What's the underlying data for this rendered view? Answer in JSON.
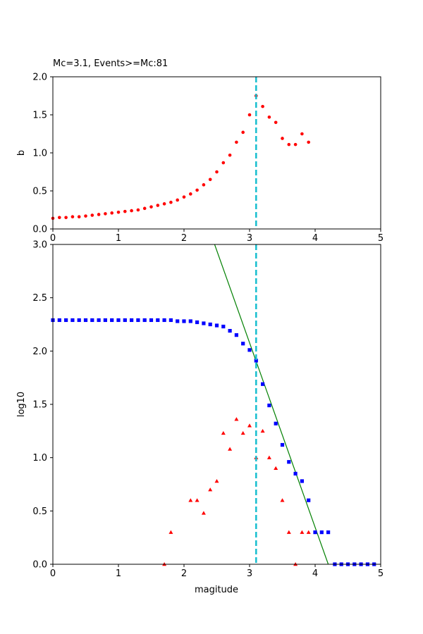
{
  "chart_data": [
    {
      "type": "scatter",
      "title": "Mc=3.1, Events>=Mc:81",
      "xlabel": "",
      "ylabel": "b",
      "xlim": [
        0,
        5
      ],
      "ylim": [
        0,
        2
      ],
      "x_ticks": [
        "0",
        "1",
        "2",
        "3",
        "4",
        "5"
      ],
      "y_ticks": [
        "0.0",
        "0.5",
        "1.0",
        "1.5",
        "2.0"
      ],
      "grid": false,
      "series": [
        {
          "marker": "circle",
          "color": "#ff0000",
          "points": [
            [
              0.0,
              0.14
            ],
            [
              0.1,
              0.15
            ],
            [
              0.2,
              0.15
            ],
            [
              0.3,
              0.16
            ],
            [
              0.4,
              0.16
            ],
            [
              0.5,
              0.17
            ],
            [
              0.6,
              0.18
            ],
            [
              0.7,
              0.19
            ],
            [
              0.8,
              0.2
            ],
            [
              0.9,
              0.21
            ],
            [
              1.0,
              0.22
            ],
            [
              1.1,
              0.23
            ],
            [
              1.2,
              0.24
            ],
            [
              1.3,
              0.25
            ],
            [
              1.4,
              0.27
            ],
            [
              1.5,
              0.29
            ],
            [
              1.6,
              0.31
            ],
            [
              1.7,
              0.33
            ],
            [
              1.8,
              0.35
            ],
            [
              1.9,
              0.38
            ],
            [
              2.0,
              0.42
            ],
            [
              2.1,
              0.46
            ],
            [
              2.2,
              0.51
            ],
            [
              2.3,
              0.58
            ],
            [
              2.4,
              0.65
            ],
            [
              2.5,
              0.75
            ],
            [
              2.6,
              0.87
            ],
            [
              2.7,
              0.97
            ],
            [
              2.8,
              1.14
            ],
            [
              2.9,
              1.27
            ],
            [
              3.0,
              1.5
            ],
            [
              3.1,
              1.75
            ],
            [
              3.2,
              1.61
            ],
            [
              3.3,
              1.47
            ],
            [
              3.4,
              1.4
            ],
            [
              3.5,
              1.19
            ],
            [
              3.6,
              1.11
            ],
            [
              3.7,
              1.11
            ],
            [
              3.8,
              1.25
            ],
            [
              3.9,
              1.14
            ]
          ]
        }
      ],
      "mc_line": {
        "x": 3.1,
        "color": "#17becf",
        "style": "dashed"
      }
    },
    {
      "type": "scatter",
      "title": "",
      "xlabel": "magitude",
      "ylabel": "log10",
      "xlim": [
        0,
        5
      ],
      "ylim": [
        0,
        3
      ],
      "x_ticks": [
        "0",
        "1",
        "2",
        "3",
        "4",
        "5"
      ],
      "y_ticks": [
        "0.0",
        "0.5",
        "1.0",
        "1.5",
        "2.0",
        "2.5",
        "3.0"
      ],
      "grid": false,
      "series": [
        {
          "marker": "square",
          "color": "#0000ff",
          "points": [
            [
              0.0,
              2.29
            ],
            [
              0.1,
              2.29
            ],
            [
              0.2,
              2.29
            ],
            [
              0.3,
              2.29
            ],
            [
              0.4,
              2.29
            ],
            [
              0.5,
              2.29
            ],
            [
              0.6,
              2.29
            ],
            [
              0.7,
              2.29
            ],
            [
              0.8,
              2.29
            ],
            [
              0.9,
              2.29
            ],
            [
              1.0,
              2.29
            ],
            [
              1.1,
              2.29
            ],
            [
              1.2,
              2.29
            ],
            [
              1.3,
              2.29
            ],
            [
              1.4,
              2.29
            ],
            [
              1.5,
              2.29
            ],
            [
              1.6,
              2.29
            ],
            [
              1.7,
              2.29
            ],
            [
              1.8,
              2.29
            ],
            [
              1.9,
              2.28
            ],
            [
              2.0,
              2.28
            ],
            [
              2.1,
              2.28
            ],
            [
              2.2,
              2.27
            ],
            [
              2.3,
              2.26
            ],
            [
              2.4,
              2.25
            ],
            [
              2.5,
              2.24
            ],
            [
              2.6,
              2.23
            ],
            [
              2.7,
              2.19
            ],
            [
              2.8,
              2.15
            ],
            [
              2.9,
              2.07
            ],
            [
              3.0,
              2.01
            ],
            [
              3.1,
              1.91
            ],
            [
              3.2,
              1.69
            ],
            [
              3.3,
              1.49
            ],
            [
              3.4,
              1.32
            ],
            [
              3.5,
              1.12
            ],
            [
              3.6,
              0.96
            ],
            [
              3.7,
              0.85
            ],
            [
              3.8,
              0.78
            ],
            [
              3.9,
              0.6
            ],
            [
              4.0,
              0.3
            ],
            [
              4.1,
              0.3
            ],
            [
              4.2,
              0.3
            ],
            [
              4.3,
              0.0
            ],
            [
              4.4,
              0.0
            ],
            [
              4.5,
              0.0
            ],
            [
              4.6,
              0.0
            ],
            [
              4.7,
              0.0
            ],
            [
              4.8,
              0.0
            ],
            [
              4.9,
              0.0
            ]
          ]
        },
        {
          "marker": "triangle",
          "color": "#ff0000",
          "points": [
            [
              1.7,
              0.0
            ],
            [
              1.8,
              0.3
            ],
            [
              2.1,
              0.6
            ],
            [
              2.2,
              0.6
            ],
            [
              2.3,
              0.48
            ],
            [
              2.4,
              0.7
            ],
            [
              2.5,
              0.78
            ],
            [
              2.6,
              1.23
            ],
            [
              2.7,
              1.08
            ],
            [
              2.8,
              1.36
            ],
            [
              2.9,
              1.23
            ],
            [
              3.0,
              1.3
            ],
            [
              3.1,
              1.0
            ],
            [
              3.2,
              1.25
            ],
            [
              3.3,
              1.0
            ],
            [
              3.4,
              0.9
            ],
            [
              3.5,
              0.6
            ],
            [
              3.6,
              0.3
            ],
            [
              3.7,
              0.0
            ],
            [
              3.8,
              0.3
            ],
            [
              3.9,
              0.3
            ]
          ]
        }
      ],
      "fit_line": {
        "color": "#008000",
        "points": [
          [
            2.467,
            3.0
          ],
          [
            4.2,
            0.0
          ]
        ]
      },
      "mc_line": {
        "x": 3.1,
        "color": "#17becf",
        "style": "dashed"
      }
    }
  ]
}
